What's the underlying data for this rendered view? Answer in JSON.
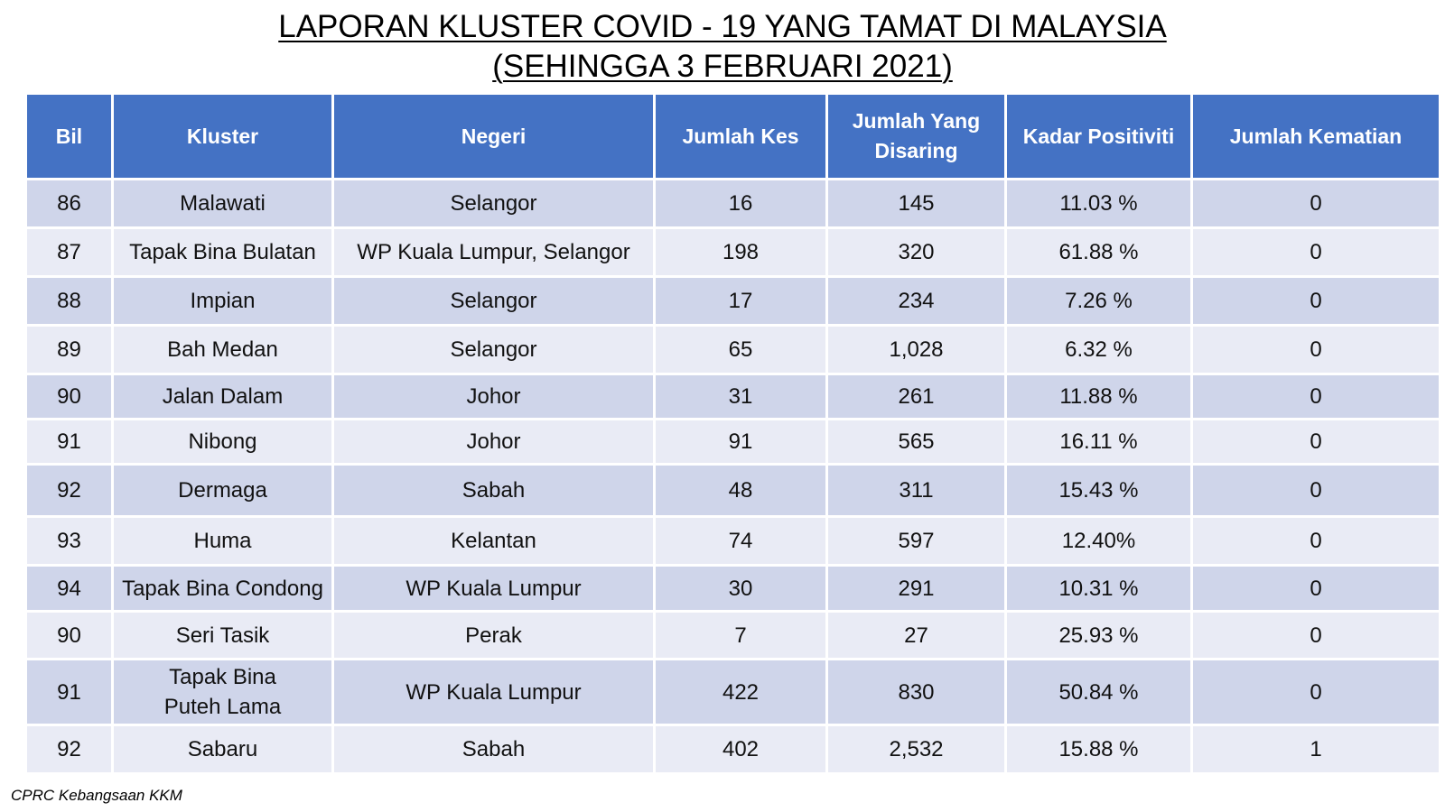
{
  "title": {
    "line1": "LAPORAN KLUSTER COVID - 19 YANG TAMAT DI MALAYSIA",
    "line2": "(SEHINGGA  3 FEBRUARI 2021)"
  },
  "table": {
    "headers": [
      "Bil",
      "Kluster",
      "Negeri",
      "Jumlah Kes",
      "Jumlah Yang Disaring",
      "Kadar Positiviti",
      "Jumlah Kematian"
    ],
    "rows": [
      [
        "86",
        "Malawati",
        "Selangor",
        "16",
        "145",
        "11.03 %",
        "0"
      ],
      [
        "87",
        "Tapak Bina Bulatan",
        "WP Kuala Lumpur, Selangor",
        "198",
        "320",
        "61.88 %",
        "0"
      ],
      [
        "88",
        "Impian",
        "Selangor",
        "17",
        "234",
        "7.26 %",
        "0"
      ],
      [
        "89",
        "Bah Medan",
        "Selangor",
        "65",
        "1,028",
        "6.32 %",
        "0"
      ],
      [
        "90",
        "Jalan Dalam",
        "Johor",
        "31",
        "261",
        "11.88 %",
        "0"
      ],
      [
        "91",
        "Nibong",
        "Johor",
        "91",
        "565",
        "16.11 %",
        "0"
      ],
      [
        "92",
        "Dermaga",
        "Sabah",
        "48",
        "311",
        "15.43 %",
        "0"
      ],
      [
        "93",
        "Huma",
        "Kelantan",
        "74",
        "597",
        "12.40%",
        "0"
      ],
      [
        "94",
        "Tapak Bina Condong",
        "WP Kuala Lumpur",
        "30",
        "291",
        "10.31 %",
        "0"
      ],
      [
        "90",
        "Seri Tasik",
        "Perak",
        "7",
        "27",
        "25.93 %",
        "0"
      ],
      [
        "91",
        "Tapak Bina Puteh Lama",
        "WP Kuala Lumpur",
        "422",
        "830",
        "50.84 %",
        "0"
      ],
      [
        "92",
        "Sabaru",
        "Sabah",
        "402",
        "2,532",
        "15.88 %",
        "1"
      ]
    ]
  },
  "footer": {
    "source": "CPRC Kebangsaan KKM"
  },
  "colors": {
    "header_bg": "#4472c4",
    "row_dark": "#cfd5ea",
    "row_light": "#e9ebf5"
  }
}
